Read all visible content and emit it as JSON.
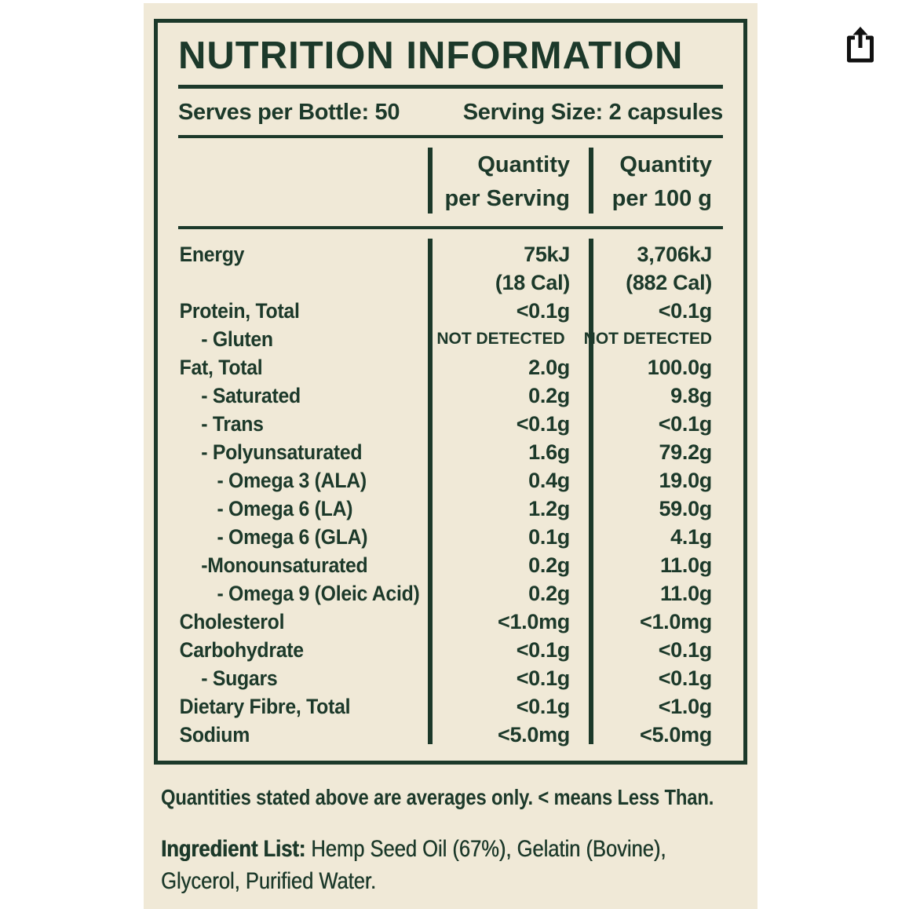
{
  "viewer": {
    "share_icon": "share-icon"
  },
  "colors": {
    "page_bg": "#ffffff",
    "label_bg": "#f0e9d7",
    "ink_green": "#1c392a",
    "icon_black": "#111111"
  },
  "label": {
    "title": "NUTRITION INFORMATION",
    "serves_per_bottle": "Serves per Bottle: 50",
    "serving_size": "Serving Size: 2 capsules",
    "col_headers": [
      {
        "line1": "Quantity",
        "line2": "per Serving"
      },
      {
        "line1": "Quantity",
        "line2": "per 100 g"
      }
    ],
    "rows": [
      {
        "label": "Energy",
        "indent": 0,
        "per_serving": "75kJ",
        "per_100g": "3,706kJ"
      },
      {
        "label": "",
        "indent": 0,
        "per_serving": "(18 Cal)",
        "per_100g": "(882 Cal)"
      },
      {
        "label": "Protein, Total",
        "indent": 0,
        "per_serving": "<0.1g",
        "per_100g": "<0.1g"
      },
      {
        "label": "- Gluten",
        "indent": 1,
        "small": true,
        "per_serving": "NOT DETECTED",
        "per_100g": "NOT DETECTED"
      },
      {
        "label": "Fat, Total",
        "indent": 0,
        "per_serving": "2.0g",
        "per_100g": "100.0g"
      },
      {
        "label": "- Saturated",
        "indent": 1,
        "per_serving": "0.2g",
        "per_100g": "9.8g"
      },
      {
        "label": "- Trans",
        "indent": 1,
        "per_serving": "<0.1g",
        "per_100g": "<0.1g"
      },
      {
        "label": "- Polyunsaturated",
        "indent": 1,
        "per_serving": "1.6g",
        "per_100g": "79.2g"
      },
      {
        "label": "- Omega 3 (ALA)",
        "indent": 2,
        "per_serving": "0.4g",
        "per_100g": "19.0g"
      },
      {
        "label": "- Omega 6 (LA)",
        "indent": 2,
        "per_serving": "1.2g",
        "per_100g": "59.0g"
      },
      {
        "label": "- Omega 6 (GLA)",
        "indent": 2,
        "per_serving": "0.1g",
        "per_100g": "4.1g"
      },
      {
        "label": "-Monounsaturated",
        "indent": 1,
        "per_serving": "0.2g",
        "per_100g": "11.0g"
      },
      {
        "label": "- Omega 9 (Oleic Acid)",
        "indent": 2,
        "per_serving": "0.2g",
        "per_100g": "11.0g"
      },
      {
        "label": "Cholesterol",
        "indent": 0,
        "per_serving": "<1.0mg",
        "per_100g": "<1.0mg"
      },
      {
        "label": "Carbohydrate",
        "indent": 0,
        "per_serving": "<0.1g",
        "per_100g": "<0.1g"
      },
      {
        "label": "- Sugars",
        "indent": 1,
        "per_serving": "<0.1g",
        "per_100g": "<0.1g"
      },
      {
        "label": "Dietary Fibre, Total",
        "indent": 0,
        "per_serving": "<0.1g",
        "per_100g": "<1.0g"
      },
      {
        "label": "Sodium",
        "indent": 0,
        "per_serving": "<5.0mg",
        "per_100g": "<5.0mg"
      }
    ],
    "note": "Quantities stated above are averages only. < means Less Than.",
    "ingredient_label": "Ingredient List:",
    "ingredient_text": " Hemp Seed Oil (67%), Gelatin (Bovine), Glycerol, Purified Water."
  }
}
